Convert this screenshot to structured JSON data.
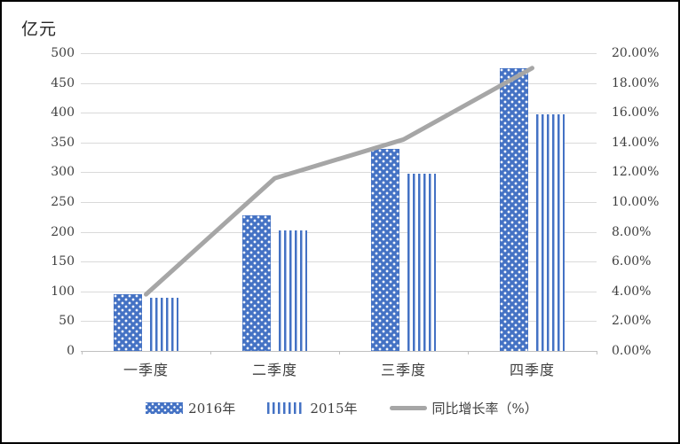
{
  "figure": {
    "background": "#ffffff",
    "border_color": "#000000"
  },
  "chart_data": {
    "type": "bar",
    "subtype": "grouped-bars-with-line",
    "categories": [
      "一季度",
      "二季度",
      "三季度",
      "四季度"
    ],
    "series": [
      {
        "name": "2016年",
        "type": "bar",
        "pattern": "dots",
        "color": "#4472C4",
        "axis": "left",
        "values": [
          95,
          227,
          340,
          475
        ]
      },
      {
        "name": "2015年",
        "type": "bar",
        "pattern": "stripes",
        "color": "#4472C4",
        "axis": "left",
        "values": [
          90,
          202,
          298,
          397
        ]
      },
      {
        "name": "同比增长率（%）",
        "type": "line",
        "pattern": "line",
        "color": "#A6A6A6",
        "axis": "right",
        "values": [
          3.8,
          11.6,
          14.2,
          19.0
        ]
      }
    ],
    "left_axis": {
      "title": "亿元",
      "min": 0,
      "max": 500,
      "step": 50,
      "tick_labels": [
        "500",
        "450",
        "400",
        "350",
        "300",
        "250",
        "200",
        "150",
        "100",
        "50",
        "0"
      ]
    },
    "right_axis": {
      "min": 0,
      "max": 20,
      "step": 2,
      "tick_labels": [
        "20.00%",
        "18.00%",
        "16.00%",
        "14.00%",
        "12.00%",
        "10.00%",
        "8.00%",
        "6.00%",
        "4.00%",
        "2.00%",
        "0.00%"
      ]
    },
    "grid": true,
    "legend_position": "bottom",
    "colors": {
      "bar_blue": "#4472C4",
      "line_gray": "#A6A6A6",
      "gridline": "#D9D9D9",
      "axis_line": "#BFBFBF",
      "text": "#3F3F3F"
    }
  }
}
